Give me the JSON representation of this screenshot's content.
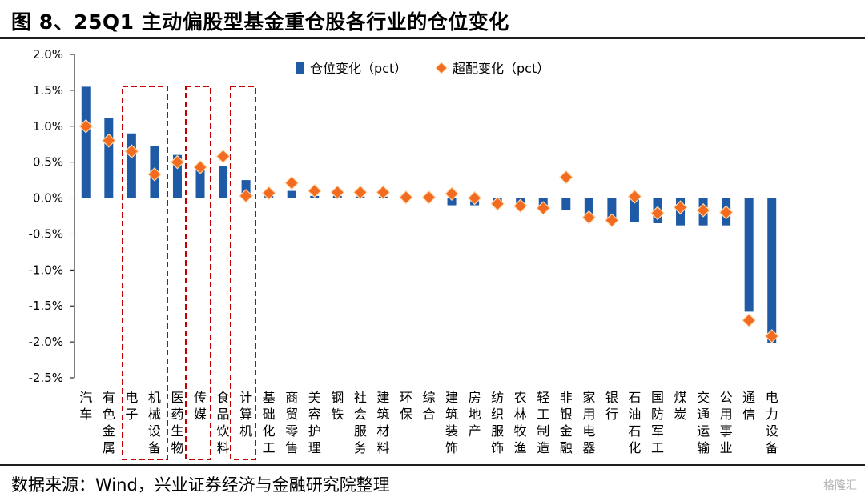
{
  "title": "图 8、25Q1 主动偏股型基金重仓股各行业的仓位变化",
  "source": "数据来源：Wind，兴业证券经济与金融研究院整理",
  "watermark": "格隆汇",
  "colors": {
    "bar": "#1f5aa6",
    "marker": "#f26b21",
    "marker_edge": "#ffd7a6",
    "highlight": "#c00000"
  },
  "chart_data": {
    "type": "bar",
    "ylim": [
      -2.5,
      2.0
    ],
    "yticks": [
      "2.0%",
      "1.5%",
      "1.0%",
      "0.5%",
      "0.0%",
      "-0.5%",
      "-1.0%",
      "-1.5%",
      "-2.0%",
      "-2.5%"
    ],
    "legend_position": "top",
    "categories": [
      "汽车",
      "有色金属",
      "电子",
      "机械设备",
      "医药生物",
      "传媒",
      "食品饮料",
      "计算机",
      "基础化工",
      "商贸零售",
      "美容护理",
      "钢铁",
      "社会服务",
      "建筑材料",
      "环保",
      "综合",
      "建筑装饰",
      "房地产",
      "纺织服饰",
      "农林牧渔",
      "轻工制造",
      "非银金融",
      "家用电器",
      "银行",
      "石油石化",
      "国防军工",
      "煤炭",
      "交通运输",
      "公用事业",
      "通信",
      "电力设备"
    ],
    "series": [
      {
        "name": "仓位变化（pct）",
        "style": "bar",
        "values": [
          1.55,
          1.12,
          0.9,
          0.72,
          0.6,
          0.45,
          0.45,
          0.25,
          0.05,
          0.1,
          0.03,
          0.03,
          0.02,
          0.02,
          0.0,
          0.0,
          -0.1,
          -0.1,
          -0.1,
          -0.12,
          -0.14,
          -0.17,
          -0.3,
          -0.33,
          -0.33,
          -0.35,
          -0.38,
          -0.38,
          -0.38,
          -1.58,
          -2.02
        ]
      },
      {
        "name": "超配变化（pct）",
        "style": "marker",
        "values": [
          1.0,
          0.8,
          0.65,
          0.33,
          0.5,
          0.43,
          0.58,
          0.03,
          0.07,
          0.21,
          0.1,
          0.08,
          0.08,
          0.08,
          0.01,
          0.01,
          0.06,
          0.0,
          -0.08,
          -0.11,
          -0.14,
          0.29,
          -0.27,
          -0.31,
          0.02,
          -0.21,
          -0.13,
          -0.17,
          -0.2,
          -1.7,
          -1.92
        ]
      }
    ],
    "highlight_groups": [
      [
        2,
        3
      ],
      [
        4,
        5
      ],
      [
        6,
        7
      ]
    ]
  }
}
